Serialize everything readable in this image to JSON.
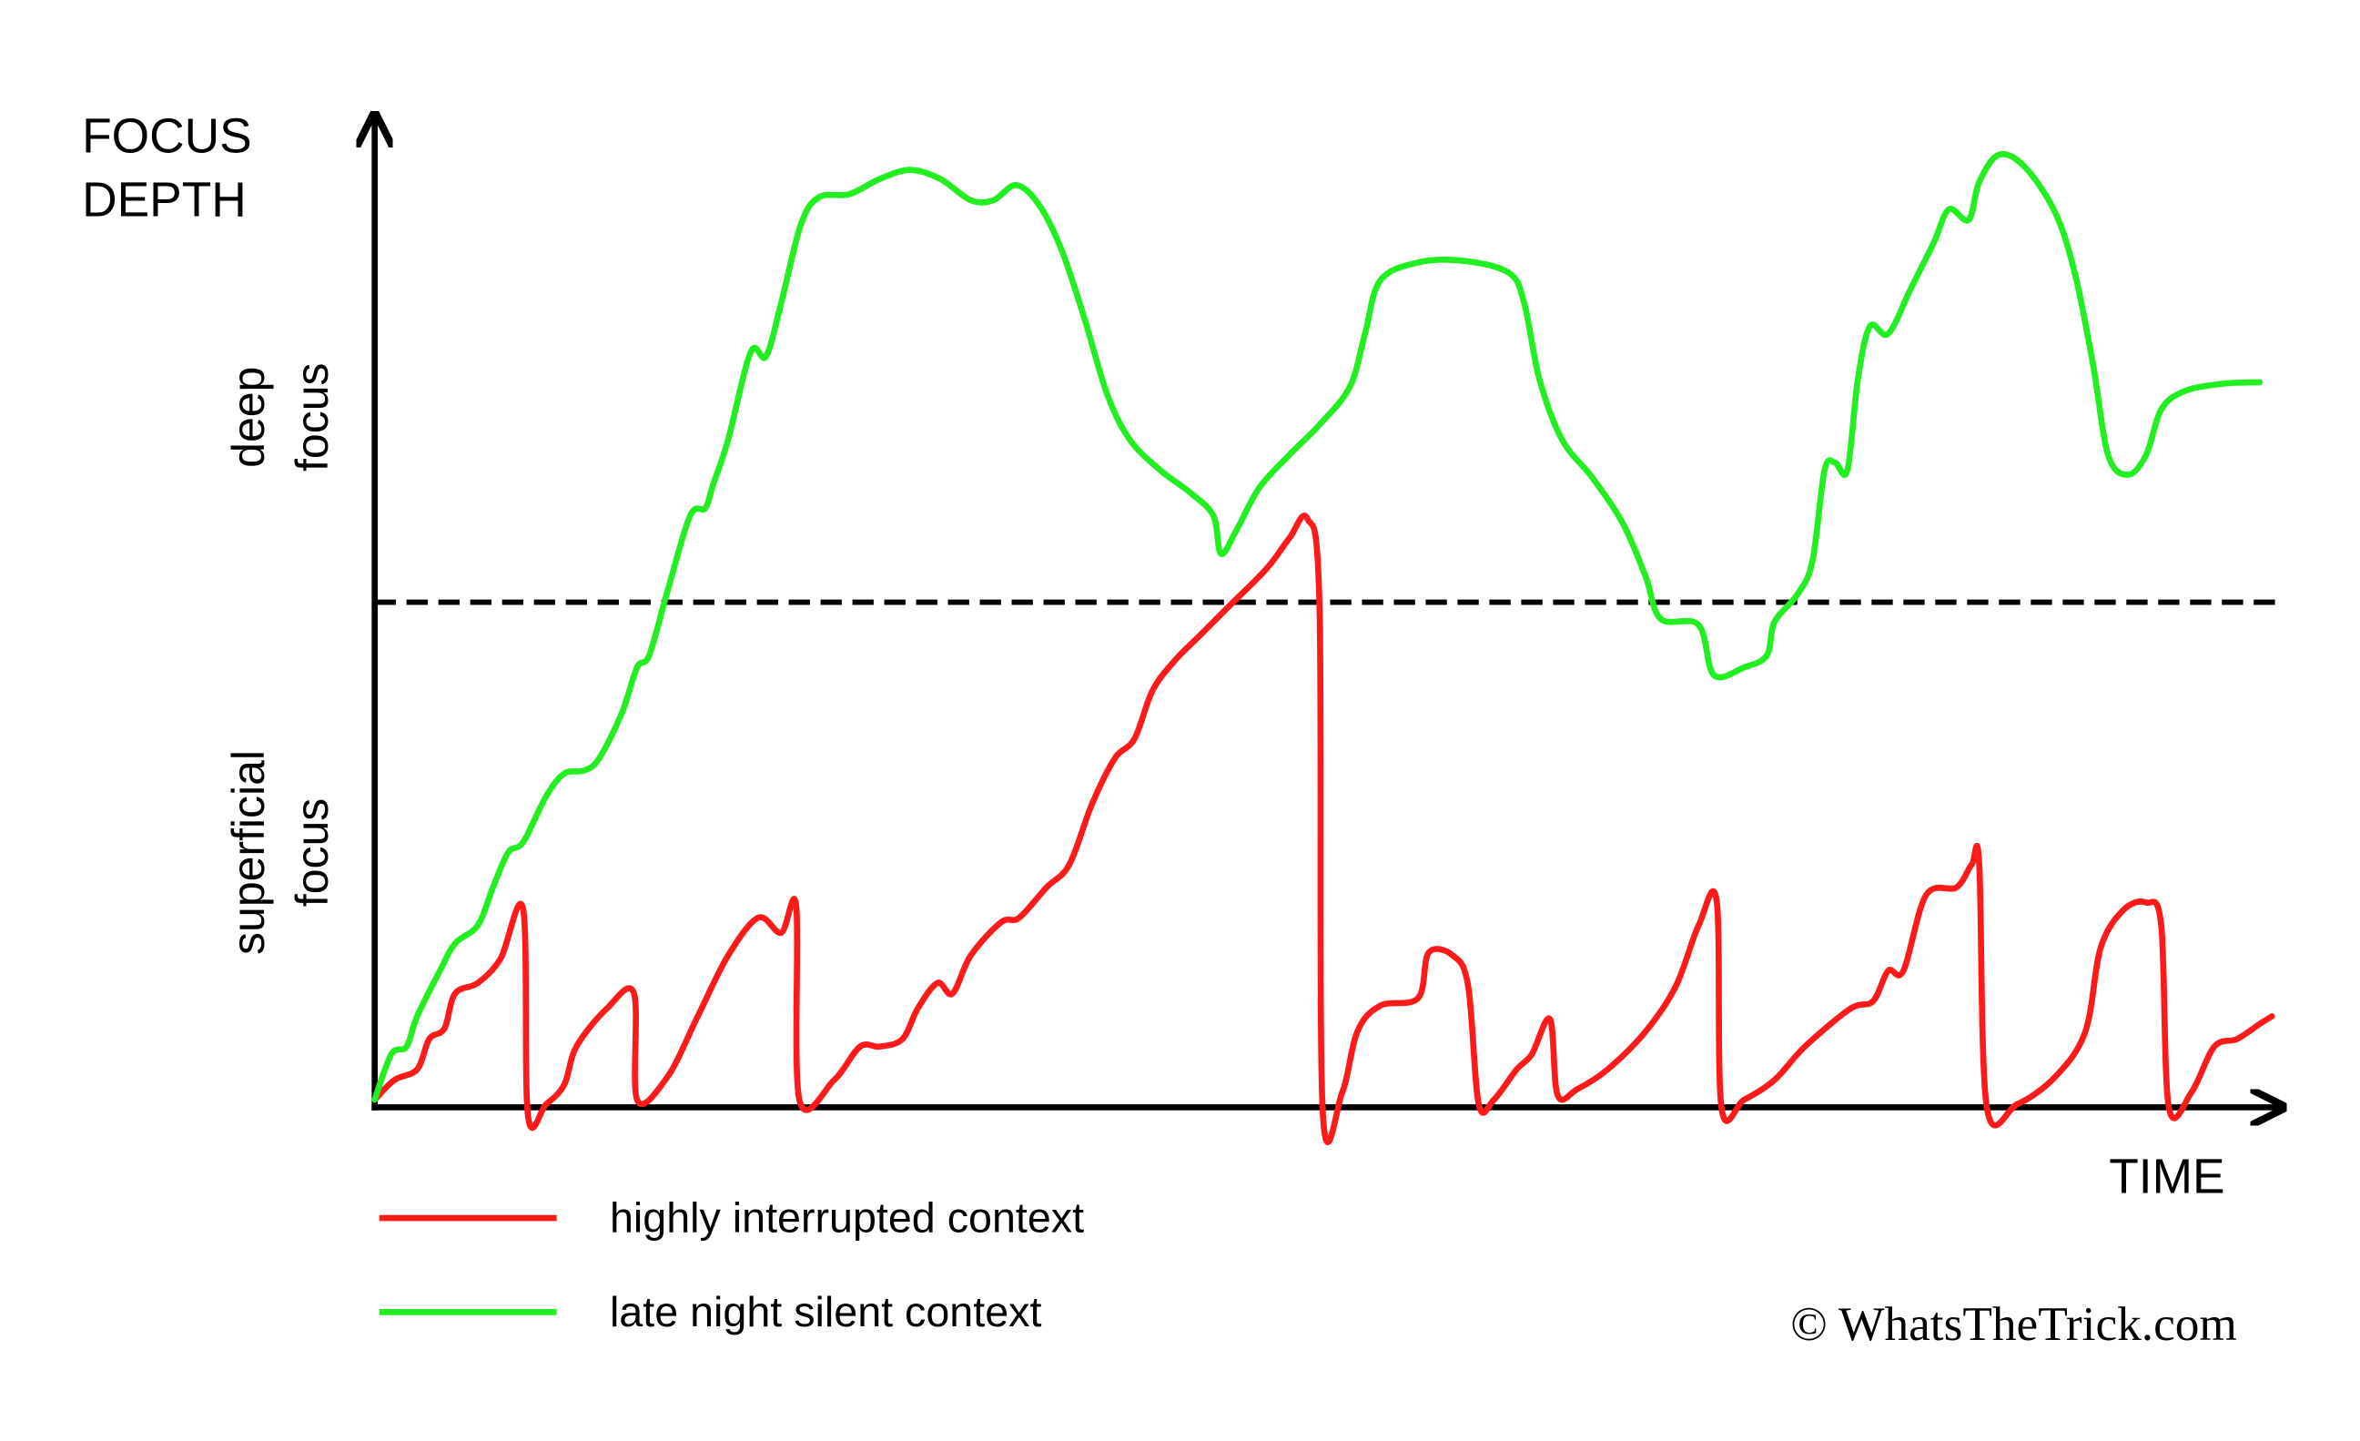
{
  "chart_data": {
    "type": "line",
    "ylabel": [
      "FOCUS",
      "DEPTH"
    ],
    "xlabel": "TIME",
    "region_labels": [
      [
        "deep",
        "focus"
      ],
      [
        "superficial",
        "focus"
      ]
    ],
    "xlim": [
      0,
      1253
    ],
    "ylim": [
      0,
      650
    ],
    "reference_line": 333,
    "series": [
      {
        "name": "highly interrupted context",
        "color": "#ff1a1a",
        "x": [
          0,
          13,
          28,
          36,
          46,
          53,
          68,
          83,
          98,
          101,
          113,
          125,
          133,
          153,
          171,
          173,
          193,
          213,
          233,
          253,
          268,
          278,
          280,
          303,
          320,
          333,
          348,
          358,
          371,
          381,
          393,
          413,
          425,
          443,
          458,
          473,
          488,
          501,
          513,
          528,
          543,
          563,
          588,
          603,
          615,
          623,
          625,
          638,
          648,
          663,
          688,
          695,
          711,
          721,
          728,
          738,
          753,
          763,
          775,
          780,
          793,
          813,
          838,
          858,
          873,
          885,
          888,
          903,
          923,
          943,
          973,
          988,
          998,
          1008,
          1023,
          1043,
          1053,
          1058,
          1063,
          1083,
          1108,
          1128,
          1138,
          1153,
          1168,
          1178,
          1183,
          1198,
          1213,
          1228,
          1243,
          1251
        ],
        "values": [
          5,
          18,
          25,
          45,
          52,
          75,
          82,
          98,
          130,
          -5,
          2,
          15,
          40,
          65,
          75,
          5,
          20,
          60,
          100,
          125,
          115,
          132,
          5,
          18,
          40,
          40,
          45,
          65,
          82,
          75,
          100,
          122,
          125,
          145,
          160,
          200,
          230,
          243,
          275,
          295,
          310,
          330,
          355,
          375,
          388,
          330,
          0,
          10,
          50,
          67,
          72,
          102,
          100,
          80,
          2,
          5,
          25,
          35,
          58,
          8,
          12,
          25,
          50,
          80,
          120,
          135,
          0,
          5,
          18,
          40,
          65,
          70,
          90,
          90,
          140,
          145,
          160,
          160,
          0,
          2,
          20,
          50,
          105,
          130,
          135,
          120,
          0,
          10,
          40,
          45,
          55,
          60
        ]
      },
      {
        "name": "late night silent context",
        "color": "#22ee22",
        "x": [
          0,
          11,
          21,
          28,
          43,
          53,
          68,
          78,
          88,
          98,
          113,
          125,
          138,
          148,
          163,
          173,
          181,
          193,
          208,
          218,
          223,
          233,
          248,
          258,
          268,
          281,
          293,
          313,
          333,
          353,
          373,
          393,
          408,
          423,
          438,
          453,
          468,
          483,
          498,
          518,
          538,
          553,
          558,
          568,
          583,
          603,
          623,
          643,
          653,
          663,
          688,
          718,
          748,
          758,
          768,
          783,
          803,
          823,
          838,
          848,
          873,
          883,
          903,
          918,
          923,
          938,
          948,
          956,
          963,
          971,
          978,
          986,
          998,
          1013,
          1028,
          1038,
          1051,
          1058,
          1071,
          1088,
          1108,
          1121,
          1133,
          1143,
          1156,
          1168,
          1178,
          1193,
          1218,
          1243
        ],
        "values": [
          5,
          35,
          40,
          60,
          90,
          108,
          120,
          145,
          168,
          175,
          205,
          220,
          222,
          230,
          260,
          290,
          298,
          340,
          390,
          395,
          410,
          440,
          498,
          495,
          530,
          582,
          600,
          602,
          612,
          618,
          612,
          598,
          598,
          608,
          595,
          565,
          520,
          470,
          440,
          420,
          405,
          390,
          365,
          380,
          408,
          430,
          450,
          475,
          510,
          545,
          557,
          558,
          550,
          530,
          480,
          440,
          415,
          385,
          350,
          322,
          318,
          285,
          290,
          298,
          320,
          338,
          360,
          420,
          425,
          420,
          480,
          515,
          510,
          540,
          570,
          592,
          585,
          610,
          628,
          620,
          590,
          550,
          490,
          430,
          417,
          430,
          460,
          472,
          477,
          478
        ]
      }
    ],
    "credit": "© WhatsTheTrick.com"
  }
}
